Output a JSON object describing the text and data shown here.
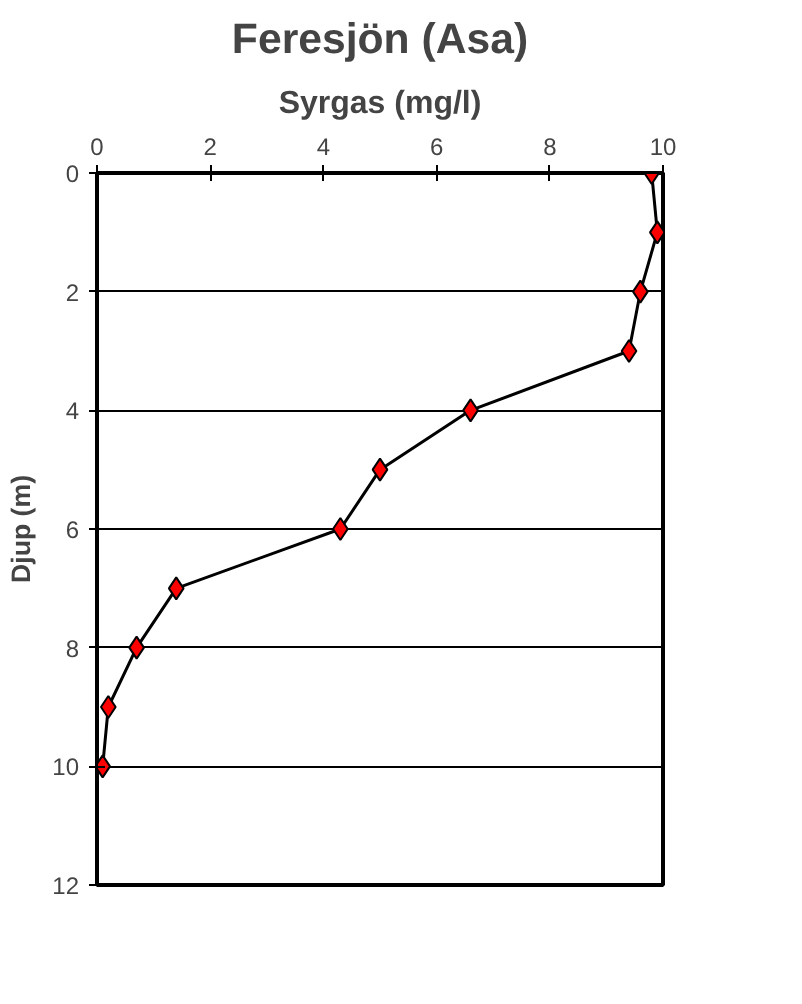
{
  "chart_data": {
    "type": "line",
    "title": "Feresjön (Asa)",
    "subtitle": "Syrgas (mg/l)",
    "ylabel": "Djup (m)",
    "series": [
      {
        "color": "#ff0000",
        "values": [
          0,
          1,
          2,
          3,
          4,
          5,
          6,
          7,
          8,
          9,
          10
        ],
        "x": [
          9.8,
          9.9,
          9.6,
          9.4,
          6.6,
          5.0,
          4.3,
          1.4,
          0.7,
          0.2,
          0.1
        ]
      }
    ],
    "xlim": [
      0,
      10
    ],
    "xticks": [
      0,
      2,
      4,
      6,
      8,
      10
    ],
    "ylim": [
      12,
      0
    ],
    "yticks": [
      0,
      2,
      4,
      6,
      8,
      10,
      12
    ],
    "grid": "y",
    "marker": "diamond",
    "line_style": "solid"
  }
}
